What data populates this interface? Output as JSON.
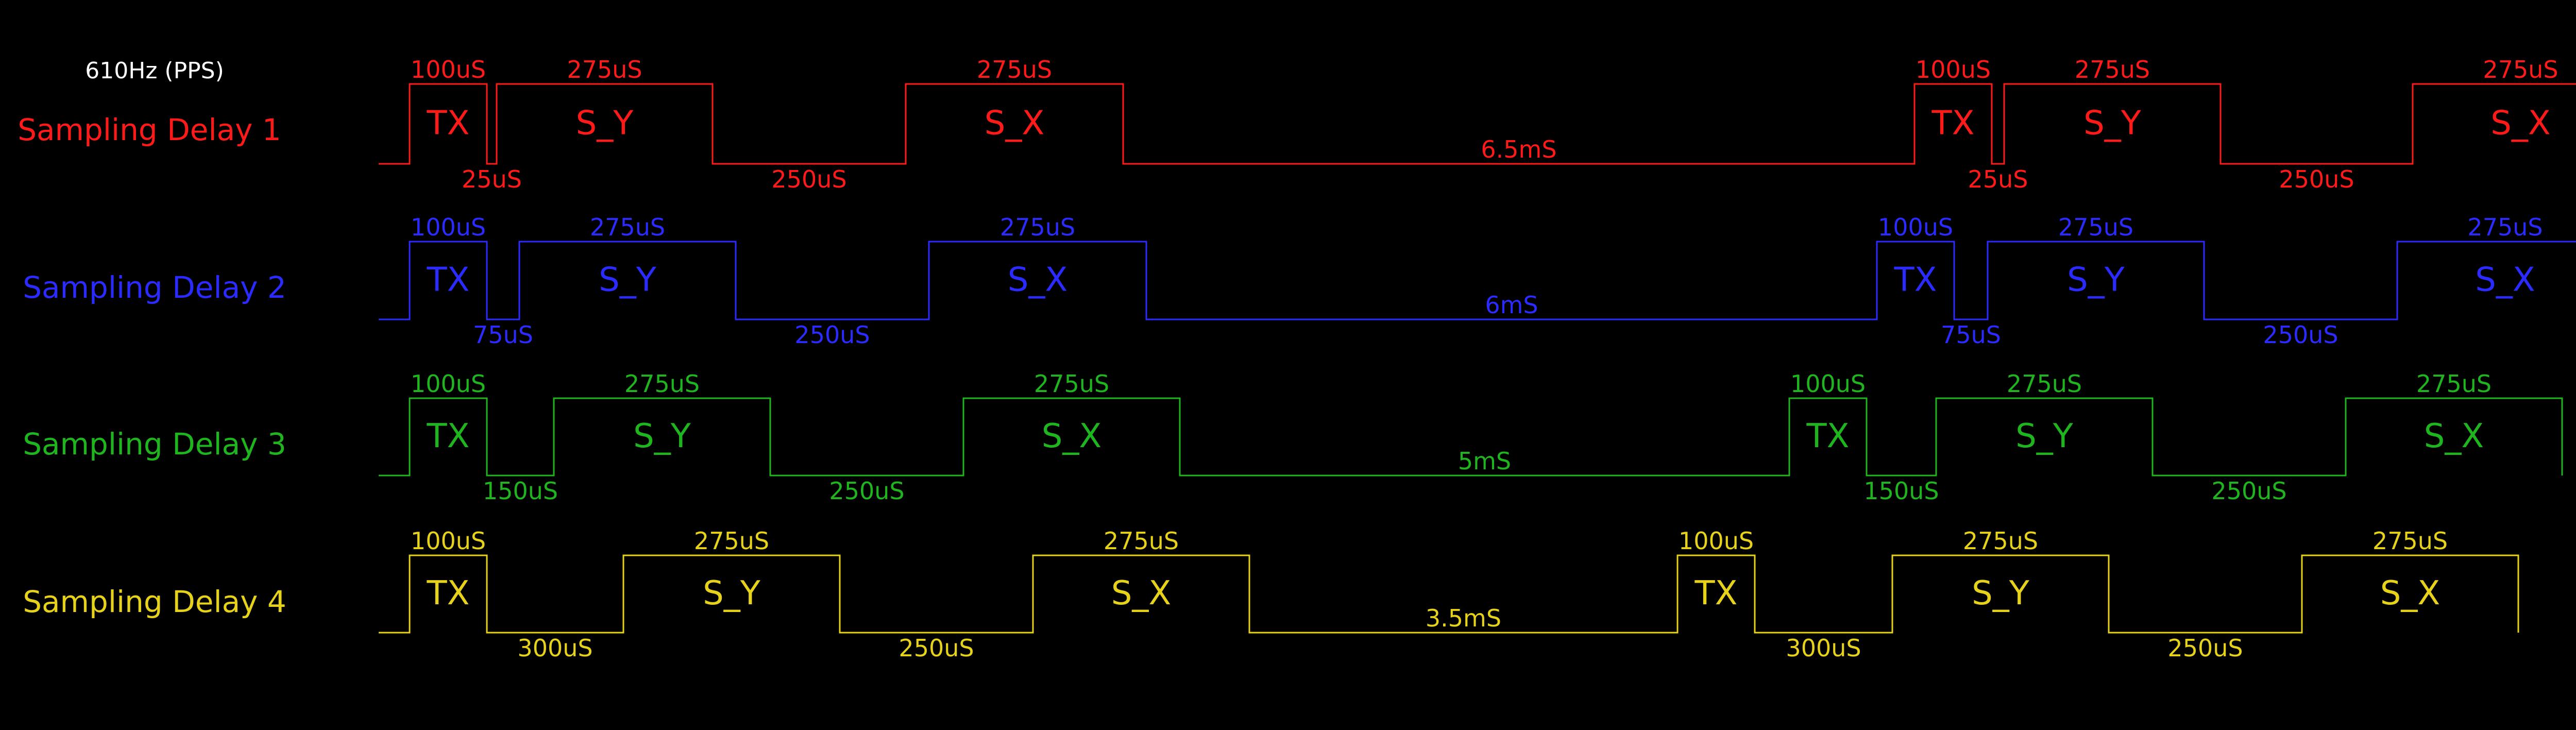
{
  "header": "610Hz (PPS)",
  "rows": [
    {
      "name": "Sampling Delay 1",
      "color": "#ff1a1a",
      "segments": [
        {
          "type": "TX",
          "label": "TX",
          "width_label": "100uS"
        },
        {
          "type": "gap",
          "label": "25uS"
        },
        {
          "type": "S_Y",
          "label": "S_Y",
          "width_label": "275uS"
        },
        {
          "type": "gap",
          "label": "250uS"
        },
        {
          "type": "S_X",
          "label": "S_X",
          "width_label": "275uS"
        },
        {
          "type": "gap",
          "label": "6.5mS"
        },
        {
          "type": "TX",
          "label": "TX",
          "width_label": "100uS"
        },
        {
          "type": "gap",
          "label": "25uS"
        },
        {
          "type": "S_Y",
          "label": "S_Y",
          "width_label": "275uS"
        },
        {
          "type": "gap",
          "label": "250uS"
        },
        {
          "type": "S_X",
          "label": "S_X",
          "width_label": "275uS"
        }
      ]
    },
    {
      "name": "Sampling Delay 2",
      "color": "#2b2bff",
      "segments": [
        {
          "type": "TX",
          "label": "TX",
          "width_label": "100uS"
        },
        {
          "type": "gap",
          "label": "75uS"
        },
        {
          "type": "S_Y",
          "label": "S_Y",
          "width_label": "275uS"
        },
        {
          "type": "gap",
          "label": "250uS"
        },
        {
          "type": "S_X",
          "label": "S_X",
          "width_label": "275uS"
        },
        {
          "type": "gap",
          "label": "6mS"
        },
        {
          "type": "TX",
          "label": "TX",
          "width_label": "100uS"
        },
        {
          "type": "gap",
          "label": "75uS"
        },
        {
          "type": "S_Y",
          "label": "S_Y",
          "width_label": "275uS"
        },
        {
          "type": "gap",
          "label": "250uS"
        },
        {
          "type": "S_X",
          "label": "S_X",
          "width_label": "275uS"
        }
      ]
    },
    {
      "name": "Sampling Delay 3",
      "color": "#1fb51f",
      "segments": [
        {
          "type": "TX",
          "label": "TX",
          "width_label": "100uS"
        },
        {
          "type": "gap",
          "label": "150uS"
        },
        {
          "type": "S_Y",
          "label": "S_Y",
          "width_label": "275uS"
        },
        {
          "type": "gap",
          "label": "250uS"
        },
        {
          "type": "S_X",
          "label": "S_X",
          "width_label": "275uS"
        },
        {
          "type": "gap",
          "label": "5mS"
        },
        {
          "type": "TX",
          "label": "TX",
          "width_label": "100uS"
        },
        {
          "type": "gap",
          "label": "150uS"
        },
        {
          "type": "S_Y",
          "label": "S_Y",
          "width_label": "275uS"
        },
        {
          "type": "gap",
          "label": "250uS"
        },
        {
          "type": "S_X",
          "label": "S_X",
          "width_label": "275uS"
        }
      ]
    },
    {
      "name": "Sampling Delay 4",
      "color": "#e6d21a",
      "segments": [
        {
          "type": "TX",
          "label": "TX",
          "width_label": "100uS"
        },
        {
          "type": "gap",
          "label": "300uS"
        },
        {
          "type": "S_Y",
          "label": "S_Y",
          "width_label": "275uS"
        },
        {
          "type": "gap",
          "label": "250uS"
        },
        {
          "type": "S_X",
          "label": "S_X",
          "width_label": "275uS"
        },
        {
          "type": "gap",
          "label": "3.5mS"
        },
        {
          "type": "TX",
          "label": "TX",
          "width_label": "100uS"
        },
        {
          "type": "gap",
          "label": "300uS"
        },
        {
          "type": "S_Y",
          "label": "S_Y",
          "width_label": "275uS"
        },
        {
          "type": "gap",
          "label": "250uS"
        },
        {
          "type": "S_X",
          "label": "S_X",
          "width_label": "275uS"
        }
      ]
    }
  ]
}
